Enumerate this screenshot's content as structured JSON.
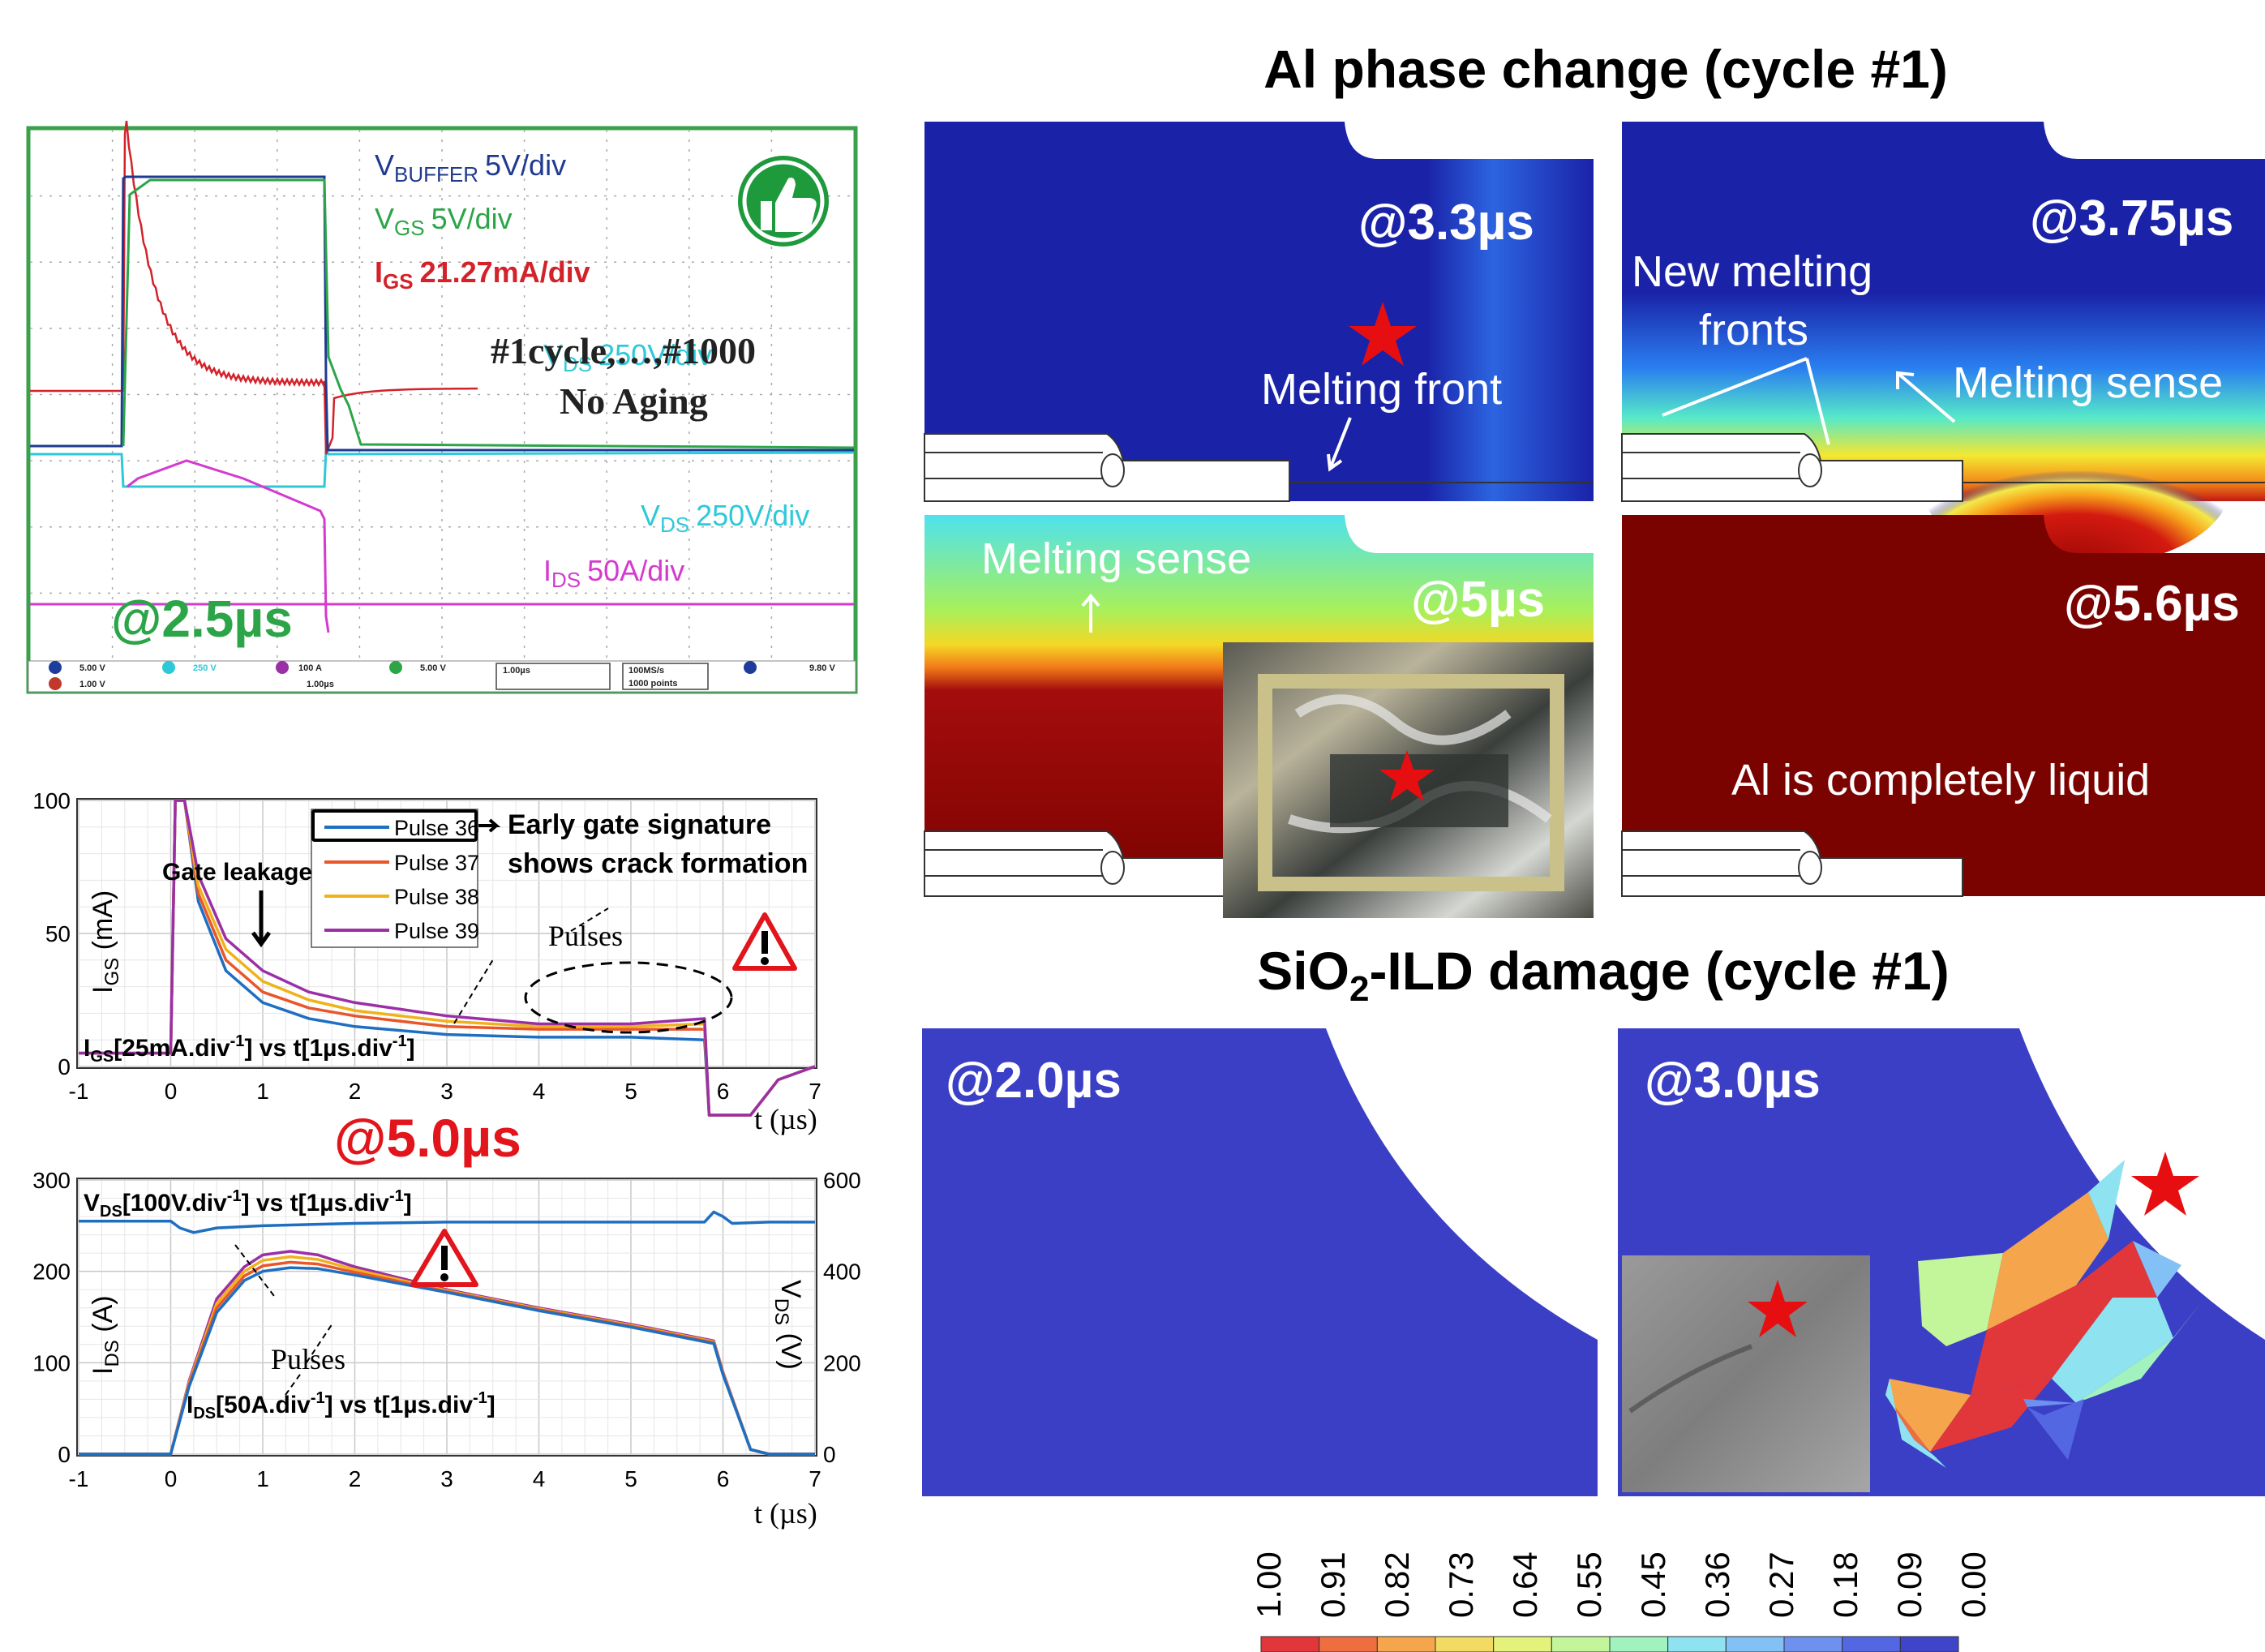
{
  "scope": {
    "vbuffer_sym": "V",
    "vbuffer_sub": "BUFFER",
    "vbuffer_div": "5V/div",
    "vgs_sym": "V",
    "vgs_sub": "GS",
    "vgs_div": "5V/div",
    "igs_sym": "I",
    "igs_sub": "GS",
    "igs_div": "21.27mA/div",
    "cycles": "#1cycle,…,#1000",
    "aging": "No Aging",
    "vds_sym": "V",
    "vds_sub": "DS",
    "vds_div": "250V/div",
    "ids_sym": "I",
    "ids_sub": "DS",
    "ids_div": "50A/div",
    "time_tag": "@2.5µs",
    "status_ch": [
      "5.00 V",
      "250 V",
      "100 A",
      "5.00 V"
    ],
    "status_row2": [
      "1.00 V",
      "1.00µs"
    ],
    "timebase": "1.00µs",
    "sample": "100MS/s",
    "points": "1000 points",
    "trigger": "9.80 V",
    "colors": {
      "vbuffer": "#203a8f",
      "vgs": "#2ca548",
      "igs": "#d3222a",
      "vds": "#2ec9d9",
      "ids": "#d43ad0",
      "frame": "#3aa04a"
    }
  },
  "gate_plot": {
    "legend": [
      "Pulse 36",
      "Pulse 37",
      "Pulse 38",
      "Pulse 39"
    ],
    "ylabel_sym": "I",
    "ylabel_sub": "GS",
    "ylabel_unit": " (mA)",
    "caption_sym": "I",
    "caption_sub": "GS",
    "caption_a": "[25mA.div",
    "caption_sup": "-1",
    "caption_b": "] vs t[1µs.div",
    "caption_c": "]",
    "gate_leakage": "Gate leakage",
    "early_1": "Early gate signature",
    "early_2": "shows crack formation",
    "pulses": "Pulses",
    "xlabel": "t (µs)"
  },
  "drain_plot": {
    "vds_caption_sym": "V",
    "vds_caption_sub": "DS",
    "vds_caption_a": "[100V.div",
    "vds_caption_sup": "-1",
    "vds_caption_b": "] vs t[1µs.div",
    "vds_caption_c": "]",
    "ids_caption_sym": "I",
    "ids_caption_sub": "DS",
    "ids_caption_a": "[50A.div",
    "ids_caption_sup": "-1",
    "ids_caption_b": "] vs t[1µs.div",
    "ids_caption_c": "]",
    "ylabel_left_sym": "I",
    "ylabel_left_sub": "DS",
    "ylabel_left_unit": " (A)",
    "ylabel_right_sym": "V",
    "ylabel_right_sub": "DS",
    "ylabel_right_unit": " (V)",
    "pulses": "Pulses",
    "xlabel": "t (µs)",
    "time_tag": "@5.0µs"
  },
  "al_panel": {
    "title": "Al phase change (cycle #1)",
    "t1": "@3.3µs",
    "t2": "@3.75µs",
    "t3": "@5µs",
    "t4": "@5.6µs",
    "melting_front": "Melting front",
    "new_fronts_1": "New melting",
    "new_fronts_2": "fronts",
    "melting_sense": "Melting sense",
    "liquid": "Al is completely liquid"
  },
  "sio2_panel": {
    "title_a": "SiO",
    "title_sub": "2",
    "title_b": "-ILD damage (cycle #1)",
    "t1": "@2.0µs",
    "t2": "@3.0µs"
  },
  "colorbar": {
    "ticks": [
      "1.00",
      "0.91",
      "0.82",
      "0.73",
      "0.64",
      "0.55",
      "0.45",
      "0.36",
      "0.27",
      "0.18",
      "0.09",
      "0.00"
    ],
    "colors": [
      "#e1373a",
      "#ee6e40",
      "#f5a54c",
      "#f2da63",
      "#e4f27c",
      "#c3f59a",
      "#a2f2c0",
      "#8fe3f0",
      "#82c0f5",
      "#6e90ef",
      "#5367e2",
      "#3f45c9"
    ]
  },
  "chart_data": [
    {
      "type": "line",
      "title": "",
      "xlabel": "t (µs)",
      "ylabel": "IGS (mA)",
      "xlim": [
        -1,
        7
      ],
      "ylim": [
        0,
        100
      ],
      "xticks": [
        -1,
        0,
        1,
        2,
        3,
        4,
        5,
        6,
        7
      ],
      "yticks": [
        0,
        50,
        100
      ],
      "grid": true,
      "legend_position": "top-right",
      "series": [
        {
          "name": "Pulse 36",
          "color": "#1f6fc1",
          "x": [
            -1,
            0,
            0.05,
            0.15,
            0.3,
            0.6,
            1,
            1.5,
            2,
            3,
            4,
            5,
            5.8,
            5.85,
            6.3,
            6.6,
            7
          ],
          "y": [
            5,
            5,
            100,
            100,
            62,
            36,
            24,
            18,
            15,
            12,
            11,
            11,
            10,
            -35,
            -35,
            -5,
            0
          ]
        },
        {
          "name": "Pulse 37",
          "color": "#e8572a",
          "x": [
            -1,
            0,
            0.05,
            0.15,
            0.3,
            0.6,
            1,
            1.5,
            2,
            3,
            4,
            5,
            5.8,
            5.85,
            6.3,
            6.6,
            7
          ],
          "y": [
            5,
            5,
            100,
            100,
            65,
            40,
            28,
            22,
            19,
            15,
            14,
            14,
            14,
            -35,
            -35,
            -5,
            0
          ]
        },
        {
          "name": "Pulse 38",
          "color": "#f0b21a",
          "x": [
            -1,
            0,
            0.05,
            0.15,
            0.3,
            0.6,
            1,
            1.5,
            2,
            3,
            4,
            5,
            5.8,
            5.85,
            6.3,
            6.6,
            7
          ],
          "y": [
            5,
            5,
            100,
            100,
            68,
            44,
            32,
            25,
            21,
            17,
            15,
            15,
            16,
            -35,
            -35,
            -5,
            0
          ]
        },
        {
          "name": "Pulse 39",
          "color": "#9b2fa6",
          "x": [
            -1,
            0,
            0.05,
            0.15,
            0.3,
            0.6,
            1,
            1.5,
            2,
            3,
            4,
            5,
            5.8,
            5.85,
            6.3,
            6.6,
            7
          ],
          "y": [
            5,
            5,
            100,
            100,
            72,
            48,
            36,
            28,
            24,
            19,
            16,
            16,
            18,
            -35,
            -35,
            -5,
            0
          ]
        }
      ]
    },
    {
      "type": "line",
      "title": "",
      "xlabel": "t (µs)",
      "ylabel": "IDS (A)",
      "ylabel_right": "VDS (V)",
      "xlim": [
        -1,
        7
      ],
      "ylim": [
        0,
        300
      ],
      "ylim_right": [
        0,
        600
      ],
      "xticks": [
        -1,
        0,
        1,
        2,
        3,
        4,
        5,
        6,
        7
      ],
      "yticks": [
        0,
        100,
        200,
        300
      ],
      "yticks_right": [
        0,
        200,
        400,
        600
      ],
      "grid": true,
      "series": [
        {
          "axis": "right",
          "color": "#1f6fc1",
          "x": [
            -1,
            0,
            0.1,
            0.25,
            0.5,
            1,
            2,
            3,
            4,
            5,
            5.8,
            5.9,
            6.0,
            6.1,
            6.5,
            7
          ],
          "y": [
            510,
            510,
            495,
            485,
            495,
            500,
            505,
            508,
            508,
            508,
            508,
            530,
            520,
            505,
            508,
            508
          ]
        },
        {
          "color": "#9b2fa6",
          "x": [
            -1,
            0,
            0.2,
            0.5,
            0.8,
            1,
            1.3,
            1.6,
            2,
            3,
            4,
            5,
            5.9,
            6,
            6.3,
            6.5,
            7
          ],
          "y": [
            0,
            0,
            80,
            170,
            205,
            218,
            222,
            218,
            205,
            180,
            160,
            142,
            124,
            90,
            5,
            0,
            0
          ]
        },
        {
          "color": "#f0b21a",
          "x": [
            -1,
            0,
            0.2,
            0.5,
            0.8,
            1,
            1.3,
            1.6,
            2,
            3,
            4,
            5,
            5.9,
            6,
            6.3,
            6.5,
            7
          ],
          "y": [
            0,
            0,
            78,
            165,
            200,
            212,
            216,
            213,
            202,
            179,
            159,
            141,
            123,
            89,
            5,
            0,
            0
          ]
        },
        {
          "color": "#e8572a",
          "x": [
            -1,
            0,
            0.2,
            0.5,
            0.8,
            1,
            1.3,
            1.6,
            2,
            3,
            4,
            5,
            5.9,
            6,
            6.3,
            6.5,
            7
          ],
          "y": [
            0,
            0,
            76,
            160,
            195,
            206,
            210,
            208,
            199,
            178,
            158,
            140,
            122,
            88,
            5,
            0,
            0
          ]
        },
        {
          "color": "#1f6fc1",
          "x": [
            -1,
            0,
            0.2,
            0.5,
            0.8,
            1,
            1.3,
            1.6,
            2,
            3,
            4,
            5,
            5.9,
            6,
            6.3,
            6.5,
            7
          ],
          "y": [
            0,
            0,
            74,
            155,
            190,
            200,
            204,
            203,
            196,
            177,
            157,
            139,
            121,
            87,
            5,
            0,
            0
          ]
        }
      ]
    }
  ]
}
